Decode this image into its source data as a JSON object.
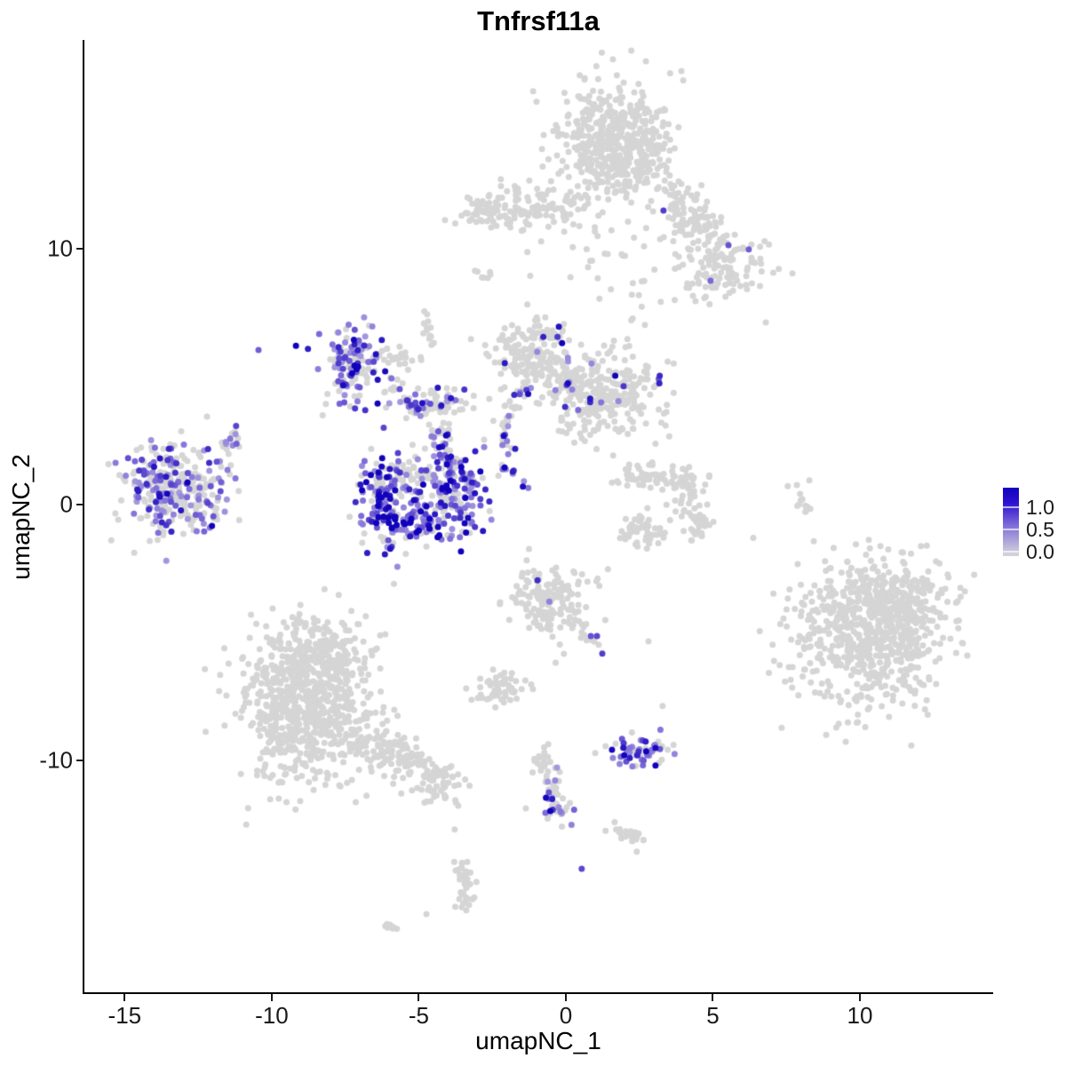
{
  "title": "Tnfrsf11a",
  "axes": {
    "x": {
      "label": "umapNC_1",
      "tick_labels": [
        "-15",
        "-10",
        "-5",
        "0",
        "5",
        "10"
      ],
      "tick_values": [
        -15,
        -10,
        -5,
        0,
        5,
        10
      ]
    },
    "y": {
      "label": "umapNC_2",
      "tick_labels": [
        "10",
        "0",
        "-10"
      ],
      "tick_values": [
        10,
        0,
        -10
      ]
    }
  },
  "legend": {
    "labels": [
      "1.0",
      "0.5",
      "0.0"
    ],
    "values": [
      1.0,
      0.5,
      0.0
    ],
    "gradient": [
      [
        "0%",
        "#1102bd"
      ],
      [
        "22%",
        "#2d12d0"
      ],
      [
        "60%",
        "#8a7ad9"
      ],
      [
        "96%",
        "#d2d0da"
      ],
      [
        "100%",
        "#d3d2da"
      ]
    ]
  },
  "chart_data": {
    "type": "scatter",
    "title": "Tnfrsf11a",
    "xlabel": "umapNC_1",
    "ylabel": "umapNC_2",
    "xlim": [
      -16.37,
      14.5
    ],
    "ylim": [
      -19.07,
      18.16
    ],
    "grid": false,
    "legend_position": "right",
    "point_radius": 3.5,
    "seed": 7,
    "colors": {
      "zero": "#d5d5d5",
      "low_expr": "#c6c1e2",
      "mid_expr": "#7b68d8",
      "high_expr": "#1000bb"
    },
    "clusters": [
      {
        "name": "top-main",
        "cx": 1.69,
        "cy": 14.05,
        "sx": 0.95,
        "sy": 1.22,
        "n": 520,
        "expr": 0,
        "v": 0
      },
      {
        "name": "top-right-lobe",
        "cx": 5.38,
        "cy": 9.24,
        "sx": 0.72,
        "sy": 0.6,
        "n": 110,
        "expr": 0,
        "v": 0
      },
      {
        "name": "top-scatter",
        "cx": 1.6,
        "cy": 9.4,
        "sx": 1.5,
        "sy": 1.05,
        "n": 45,
        "expr": 0,
        "v": 0
      },
      {
        "name": "top-band-dots",
        "cx": -1.87,
        "cy": 12.43,
        "sx": 0.55,
        "sy": 0.28,
        "n": 8,
        "expr": 0,
        "v": 0
      },
      {
        "name": "left-island",
        "cx": -13.32,
        "cy": 0.66,
        "sx": 0.88,
        "sy": 0.92,
        "n": 310,
        "expr": 0.4,
        "v": 0.52
      },
      {
        "name": "mid-upper",
        "cx": -7.19,
        "cy": 5.42,
        "sx": 0.6,
        "sy": 0.72,
        "n": 140,
        "expr": 0.5,
        "v": 0.52
      },
      {
        "name": "center-bar",
        "cx": -4.38,
        "cy": 3.92,
        "sx": 0.65,
        "sy": 0.3,
        "n": 60,
        "expr": 0.22,
        "v": 0.5
      },
      {
        "name": "crescent-left",
        "cx": -6.19,
        "cy": 0.45,
        "sx": 0.45,
        "sy": 0.95,
        "n": 110,
        "expr": 0.72,
        "v": 0.62
      },
      {
        "name": "crescent-bottom",
        "cx": -5.11,
        "cy": -0.69,
        "sx": 0.95,
        "sy": 0.5,
        "n": 130,
        "expr": 0.75,
        "v": 0.63
      },
      {
        "name": "crescent-right",
        "cx": -3.69,
        "cy": 0.63,
        "sx": 0.55,
        "sy": 0.75,
        "n": 120,
        "expr": 0.72,
        "v": 0.6
      },
      {
        "name": "crescent-core",
        "cx": -5.2,
        "cy": 1.1,
        "sx": 0.6,
        "sy": 0.5,
        "n": 70,
        "expr": 0.25,
        "v": 0.5
      },
      {
        "name": "mid-right-a",
        "cx": -1.06,
        "cy": 5.9,
        "sx": 0.62,
        "sy": 0.78,
        "n": 170,
        "expr": 0.06,
        "v": 0.55
      },
      {
        "name": "mid-right-b",
        "cx": 1.36,
        "cy": 4.23,
        "sx": 0.95,
        "sy": 0.85,
        "n": 280,
        "expr": 0.05,
        "v": 0.55
      },
      {
        "name": "claw-lower",
        "cx": 2.6,
        "cy": -1.0,
        "sx": 0.5,
        "sy": 0.35,
        "n": 50,
        "expr": 0,
        "v": 0
      },
      {
        "name": "bottom-left-main",
        "cx": -8.82,
        "cy": -7.88,
        "sx": 1.15,
        "sy": 1.5,
        "n": 720,
        "expr": 0,
        "v": 0
      },
      {
        "name": "bottom-left-top",
        "cx": -8.37,
        "cy": -5.97,
        "sx": 0.75,
        "sy": 0.75,
        "n": 160,
        "expr": 0,
        "v": 0
      },
      {
        "name": "bottom-right-main",
        "cx": 10.3,
        "cy": -5.0,
        "sx": 1.3,
        "sy": 1.5,
        "n": 620,
        "expr": 0,
        "v": 0
      },
      {
        "name": "bottom-right-lobe",
        "cx": 11.55,
        "cy": -3.85,
        "sx": 0.8,
        "sy": 0.75,
        "n": 160,
        "expr": 0,
        "v": 0
      },
      {
        "name": "bottom-right-west",
        "cx": 8.05,
        "cy": -4.35,
        "sx": 0.35,
        "sy": 0.55,
        "n": 16,
        "expr": 0,
        "v": 0
      },
      {
        "name": "bottom-mid",
        "cx": -0.57,
        "cy": -3.82,
        "sx": 0.62,
        "sy": 0.72,
        "n": 170,
        "expr": 0.01,
        "v": 0.5
      },
      {
        "name": "bottom-mid-small",
        "cx": -2.18,
        "cy": -7.19,
        "sx": 0.55,
        "sy": 0.3,
        "n": 55,
        "expr": 0,
        "v": 0
      },
      {
        "name": "small-island-colored",
        "cx": 2.39,
        "cy": -9.69,
        "sx": 0.55,
        "sy": 0.3,
        "n": 60,
        "expr": 0.5,
        "v": 0.55
      },
      {
        "name": "tail-tip-colored",
        "cx": -0.27,
        "cy": -12.15,
        "sx": 0.2,
        "sy": 0.3,
        "n": 10,
        "expr": 0.85,
        "v": 0.55
      }
    ],
    "strands": [
      {
        "name": "top-band",
        "x1": -3.32,
        "y1": 11.42,
        "x2": 0.45,
        "y2": 11.53,
        "w": 0.38,
        "n": 140,
        "expr": 0,
        "v": 0
      },
      {
        "name": "top-right-arm",
        "x1": 3.63,
        "y1": 12.53,
        "x2": 4.92,
        "y2": 10.1,
        "w": 0.42,
        "n": 110,
        "expr": 0,
        "v": 0
      },
      {
        "name": "top-streak",
        "x1": -3.05,
        "y1": 9.17,
        "x2": -2.45,
        "y2": 8.72,
        "w": 0.1,
        "n": 7,
        "expr": 0,
        "v": 0
      },
      {
        "name": "left-island-tail",
        "x1": -11.75,
        "y1": 2.01,
        "x2": -11.21,
        "y2": 2.81,
        "w": 0.12,
        "n": 16,
        "expr": 0.45,
        "v": 0.5
      },
      {
        "name": "mid-upper-arc",
        "x1": -6.31,
        "y1": 5.97,
        "x2": -4.98,
        "y2": 5.66,
        "w": 0.15,
        "n": 22,
        "expr": 0.08,
        "v": 0.5
      },
      {
        "name": "hook",
        "x1": -4.8,
        "y1": 7.57,
        "x2": -4.5,
        "y2": 6.08,
        "w": 0.1,
        "n": 14,
        "expr": 0,
        "v": 0
      },
      {
        "name": "descend-a",
        "x1": -6.04,
        "y1": 4.72,
        "x2": -4.8,
        "y2": 3.4,
        "w": 0.18,
        "n": 26,
        "expr": 0.35,
        "v": 0.5
      },
      {
        "name": "descend-b",
        "x1": -4.8,
        "y1": 3.4,
        "x2": -4.23,
        "y2": 2.19,
        "w": 0.12,
        "n": 14,
        "expr": 0.4,
        "v": 0.55
      },
      {
        "name": "center-down",
        "x1": -4.17,
        "y1": 3.23,
        "x2": -3.96,
        "y2": 1.22,
        "w": 0.12,
        "n": 22,
        "expr": 0.4,
        "v": 0.55
      },
      {
        "name": "mid-right-bridge",
        "x1": -0.6,
        "y1": 5.2,
        "x2": 0.6,
        "y2": 4.7,
        "w": 0.3,
        "n": 50,
        "expr": 0.08,
        "v": 0.5
      },
      {
        "name": "mid-right-trail",
        "x1": -2.25,
        "y1": 3.1,
        "x2": -1.4,
        "y2": 4.4,
        "w": 0.18,
        "n": 22,
        "expr": 0.2,
        "v": 0.5
      },
      {
        "name": "v-strand",
        "x1": -2.11,
        "y1": 3.06,
        "x2": -1.96,
        "y2": 1.94,
        "w": 0.1,
        "n": 12,
        "expr": 0.5,
        "v": 0.55
      },
      {
        "name": "diag-strand",
        "x1": -2.24,
        "y1": 1.67,
        "x2": -1.15,
        "y2": 0.56,
        "w": 0.08,
        "n": 10,
        "expr": 0.75,
        "v": 0.6
      },
      {
        "name": "claw-top",
        "x1": 1.9,
        "y1": 1.1,
        "x2": 4.3,
        "y2": 0.9,
        "w": 0.3,
        "n": 70,
        "expr": 0,
        "v": 0
      },
      {
        "name": "claw-right",
        "x1": 4.3,
        "y1": 0.9,
        "x2": 4.5,
        "y2": -1.2,
        "w": 0.3,
        "n": 60,
        "expr": 0,
        "v": 0
      },
      {
        "name": "right-strand",
        "x1": 7.79,
        "y1": 0.8,
        "x2": 8.19,
        "y2": -0.35,
        "w": 0.1,
        "n": 13,
        "expr": 0,
        "v": 0
      },
      {
        "name": "bottom-left-tail",
        "x1": -6.71,
        "y1": -9.1,
        "x2": -3.99,
        "y2": -11.11,
        "w": 0.38,
        "n": 160,
        "expr": 0,
        "v": 0
      },
      {
        "name": "bottom-mid-arm",
        "x1": 0.3,
        "y1": -4.6,
        "x2": 1.2,
        "y2": -5.6,
        "w": 0.15,
        "n": 14,
        "expr": 0,
        "v": 0
      },
      {
        "name": "tail-strand",
        "x1": -0.76,
        "y1": -9.62,
        "x2": -0.21,
        "y2": -12.5,
        "w": 0.22,
        "n": 55,
        "expr": 0.06,
        "v": 0.5
      },
      {
        "name": "tail-arm",
        "x1": 1.75,
        "y1": -12.64,
        "x2": 2.75,
        "y2": -13.26,
        "w": 0.15,
        "n": 22,
        "expr": 0,
        "v": 0
      },
      {
        "name": "bottom-strand-a",
        "x1": -3.56,
        "y1": -13.78,
        "x2": -3.3,
        "y2": -14.9,
        "w": 0.15,
        "n": 20,
        "expr": 0,
        "v": 0
      },
      {
        "name": "bottom-strand-b",
        "x1": -3.3,
        "y1": -14.9,
        "x2": -3.5,
        "y2": -15.9,
        "w": 0.15,
        "n": 20,
        "expr": 0,
        "v": 0
      },
      {
        "name": "bottom-streak",
        "x1": -6.13,
        "y1": -16.39,
        "x2": -5.65,
        "y2": -16.67,
        "w": 0.08,
        "n": 7,
        "expr": 0,
        "v": 0
      }
    ],
    "singles": [
      {
        "x": 3.32,
        "y": 11.49,
        "v": 0.7
      },
      {
        "x": 5.53,
        "y": 10.14,
        "v": 0.6
      },
      {
        "x": 6.22,
        "y": 9.97,
        "v": 0.55
      },
      {
        "x": 4.92,
        "y": 8.75,
        "v": 0.5
      },
      {
        "x": -10.45,
        "y": 6.04,
        "v": 0.55
      },
      {
        "x": -3.08,
        "y": 2.08,
        "v": 0.85
      },
      {
        "x": -2.78,
        "y": 2.53,
        "v": 0
      },
      {
        "x": 8.28,
        "y": 0.94,
        "v": 0
      },
      {
        "x": 6.8,
        "y": 7.12,
        "v": 0
      },
      {
        "x": 0.85,
        "y": -5.14,
        "v": 0.6
      },
      {
        "x": 1.06,
        "y": -5.14,
        "v": 0.65
      },
      {
        "x": 1.24,
        "y": -5.83,
        "v": 0.7
      },
      {
        "x": -1.12,
        "y": -7.22,
        "v": 0
      },
      {
        "x": 2.81,
        "y": -5.35,
        "v": 0
      },
      {
        "x": 3.29,
        "y": -7.88,
        "v": 0
      },
      {
        "x": 0.54,
        "y": -14.24,
        "v": 0.65
      },
      {
        "x": -1.36,
        "y": -11.88,
        "v": 0
      },
      {
        "x": -3.78,
        "y": -12.71,
        "v": 0
      },
      {
        "x": -4.74,
        "y": -16.01,
        "v": 0
      }
    ]
  }
}
